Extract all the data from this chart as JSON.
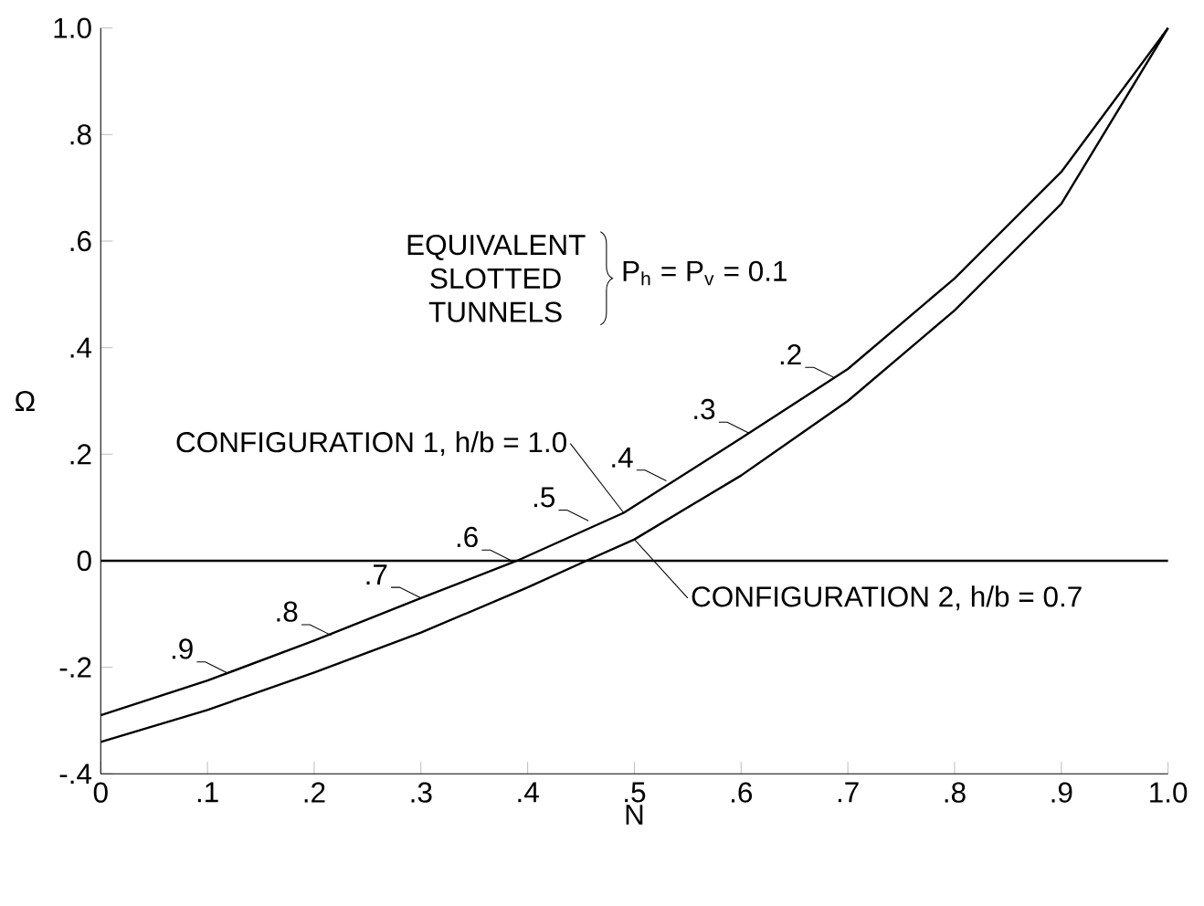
{
  "chart_data": {
    "type": "line",
    "xlabel": "N",
    "ylabel": "Ω",
    "xlim": [
      0,
      1.0
    ],
    "ylim": [
      -0.4,
      1.0
    ],
    "xticks": [
      0,
      {
        "value": 0.1,
        "label": ".1"
      },
      {
        "value": 0.2,
        "label": ".2"
      },
      {
        "value": 0.3,
        "label": ".3"
      },
      {
        "value": 0.4,
        "label": ".4"
      },
      {
        "value": 0.5,
        "label": ".5"
      },
      {
        "value": 0.6,
        "label": ".6"
      },
      {
        "value": 0.7,
        "label": ".7"
      },
      {
        "value": 0.8,
        "label": ".8"
      },
      {
        "value": 0.9,
        "label": ".9"
      },
      {
        "value": 1.0,
        "label": "1.0"
      }
    ],
    "yticks": [
      {
        "value": -0.4,
        "label": "-.4"
      },
      {
        "value": -0.2,
        "label": "-.2"
      },
      0,
      {
        "value": 0.2,
        "label": ".2"
      },
      {
        "value": 0.4,
        "label": ".4"
      },
      {
        "value": 0.6,
        "label": ".6"
      },
      {
        "value": 0.8,
        "label": ".8"
      },
      {
        "value": 1.0,
        "label": "1.0"
      }
    ],
    "series": [
      {
        "name": "CONFIGURATION 1, h/b = 1.0",
        "color": "#000000",
        "x": [
          0,
          0.1,
          0.2,
          0.3,
          0.39,
          0.49,
          0.6,
          0.7,
          0.8,
          0.9,
          1.0
        ],
        "values": [
          -0.29,
          -0.225,
          -0.15,
          -0.07,
          0,
          0.09,
          0.23,
          0.36,
          0.53,
          0.73,
          1.0
        ]
      },
      {
        "name": "CONFIGURATION 2, h/b = 0.7",
        "color": "#000000",
        "x": [
          0,
          0.1,
          0.2,
          0.3,
          0.4,
          0.455,
          0.5,
          0.6,
          0.7,
          0.8,
          0.9,
          1.0
        ],
        "values": [
          -0.34,
          -0.28,
          -0.21,
          -0.135,
          -0.05,
          0,
          0.04,
          0.16,
          0.3,
          0.47,
          0.67,
          1.0
        ]
      }
    ],
    "ref_lines": [
      {
        "axis": "y",
        "value": 0,
        "color": "#000000"
      }
    ],
    "annotations": [
      "EQUIVALENT SLOTTED TUNNELS",
      "P$_{h}$ = P$_{v}$ = 0.1",
      {
        "text": ".2",
        "x": 0.688,
        "y": 0.343
      },
      {
        "text": ".3",
        "x": 0.607,
        "y": 0.24
      },
      {
        "text": ".4",
        "x": 0.53,
        "y": 0.15
      },
      {
        "text": ".5",
        "x": 0.457,
        "y": 0.075
      },
      {
        "text": ".6",
        "x": 0.385,
        "y": 0
      },
      {
        "text": ".7",
        "x": 0.3,
        "y": -0.07
      },
      {
        "text": ".8",
        "x": 0.216,
        "y": -0.14
      },
      {
        "text": ".9",
        "x": 0.118,
        "y": -0.21
      }
    ],
    "grid": false,
    "legend": false,
    "marker": "none",
    "line_style": "solid"
  }
}
